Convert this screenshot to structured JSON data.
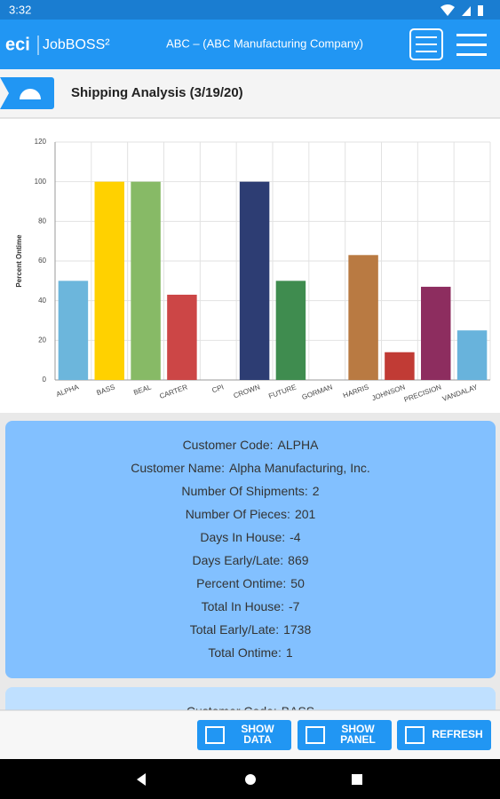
{
  "status_bar": {
    "time": "3:32"
  },
  "header": {
    "logo": "eci",
    "product": "JobBOSS²",
    "company": "ABC – (ABC Manufacturing Company)"
  },
  "page_title": "Shipping Analysis (3/19/20)",
  "chart_data": {
    "type": "bar",
    "y_label": "Percent Ontime",
    "categories": [
      "ALPHA",
      "BASS",
      "BEAL",
      "CARTER",
      "CPI",
      "CROWN",
      "FUTURE",
      "GORMAN",
      "HARRIS",
      "JOHNSON",
      "PRECISION",
      "VANDALAY"
    ],
    "values": [
      50,
      100,
      100,
      43,
      0,
      100,
      50,
      0,
      63,
      14,
      47,
      25
    ],
    "colors": [
      "#6cb6dc",
      "#ffd100",
      "#87ba66",
      "#cc4646",
      "#999999",
      "#2d3d73",
      "#3f8c4f",
      "#999999",
      "#b97a42",
      "#c13b35",
      "#8d2d5f",
      "#68b3dc"
    ],
    "ylim": [
      0,
      120
    ],
    "yticks": [
      0,
      20,
      40,
      60,
      80,
      100,
      120
    ],
    "grid": true
  },
  "details": [
    [
      [
        "Customer Code:",
        "ALPHA"
      ],
      [
        "Customer Name:",
        "Alpha Manufacturing, Inc."
      ],
      [
        "Number Of Shipments:",
        "2"
      ],
      [
        "Number Of Pieces:",
        "201"
      ],
      [
        "Days In House:",
        "-4"
      ],
      [
        "Days Early/Late:",
        "869"
      ],
      [
        "Percent Ontime:",
        "50"
      ],
      [
        "Total In House:",
        "-7"
      ],
      [
        "Total Early/Late:",
        "1738"
      ],
      [
        "Total Ontime:",
        "1"
      ]
    ],
    [
      [
        "Customer Code:",
        "BASS"
      ]
    ]
  ],
  "buttons": [
    [
      "SHOW",
      "DATA"
    ],
    [
      "SHOW",
      "PANEL"
    ],
    [
      "REFRESH"
    ]
  ]
}
